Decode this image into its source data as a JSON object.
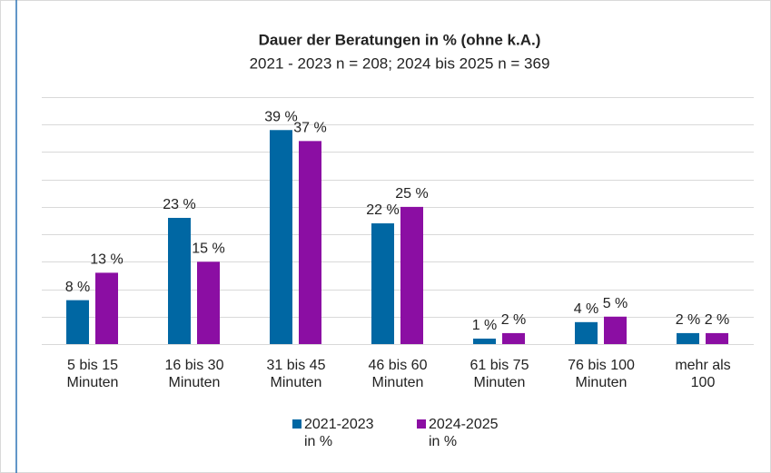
{
  "chart_data": {
    "type": "bar",
    "title": "Dauer der Beratungen in % (ohne k.A.)",
    "subtitle": "2021 - 2023 n = 208; 2024 bis 2025 n = 369",
    "categories": [
      "5 bis 15\nMinuten",
      "16 bis 30\nMinuten",
      "31 bis 45\nMinuten",
      "46 bis 60\nMinuten",
      "61 bis 75\nMinuten",
      "76  bis 100\nMinuten",
      "mehr als\n100"
    ],
    "series": [
      {
        "name": "2021-2023\nin %",
        "color": "#0067a3",
        "values": [
          8,
          23,
          39,
          22,
          1,
          4,
          2
        ],
        "value_labels": [
          "8 %",
          "23 %",
          "39 %",
          "22 %",
          "1 %",
          "4 %",
          "2 %"
        ]
      },
      {
        "name": "2024-2025\nin %",
        "color": "#8b0ea3",
        "values": [
          13,
          15,
          37,
          25,
          2,
          5,
          2
        ],
        "value_labels": [
          "13 %",
          "15 %",
          "37 %",
          "25 %",
          "2 %",
          "5 %",
          "2 %"
        ]
      }
    ],
    "ylim": [
      0,
      45
    ],
    "yticks": [
      0,
      5,
      10,
      15,
      20,
      25,
      30,
      35,
      40,
      45
    ],
    "grid": true
  }
}
